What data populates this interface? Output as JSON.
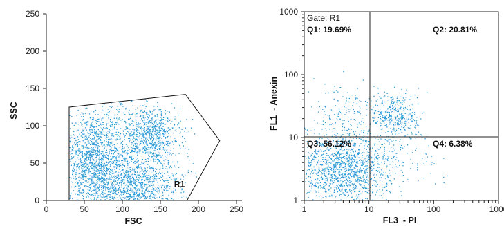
{
  "chart_data": [
    {
      "type": "scatter",
      "xlabel": "FSC",
      "ylabel": "SSC",
      "xlim": [
        0,
        250
      ],
      "ylim": [
        0,
        250
      ],
      "x_ticks": [
        "0",
        "50",
        "100",
        "150",
        "200",
        "250"
      ],
      "y_ticks": [
        "0",
        "50",
        "100",
        "150",
        "200",
        "250"
      ],
      "gate": {
        "name": "R1",
        "polygon": [
          [
            30,
            125
          ],
          [
            183,
            142
          ],
          [
            228,
            80
          ],
          [
            185,
            0
          ],
          [
            30,
            0
          ]
        ]
      },
      "clusters": [
        {
          "cx": 60,
          "cy": 60,
          "sx": 18,
          "sy": 30,
          "n": 900
        },
        {
          "cx": 90,
          "cy": 30,
          "sx": 30,
          "sy": 22,
          "n": 800
        },
        {
          "cx": 140,
          "cy": 85,
          "sx": 18,
          "sy": 20,
          "n": 700
        },
        {
          "cx": 130,
          "cy": 20,
          "sx": 30,
          "sy": 15,
          "n": 450
        },
        {
          "cx": 100,
          "cy": 90,
          "sx": 30,
          "sy": 25,
          "n": 350
        }
      ],
      "grid": false
    },
    {
      "type": "scatter",
      "scale": "log",
      "xlabel": "FL3  - PI",
      "ylabel": "FL1  - Anexin",
      "xlim": [
        1,
        1000
      ],
      "ylim": [
        1,
        1000
      ],
      "x_ticks": [
        "1",
        "10",
        "100",
        "1000"
      ],
      "y_ticks": [
        "1",
        "10",
        "100",
        "1000"
      ],
      "gate_label": "Gate: R1",
      "quadrant_divider": {
        "x": 10,
        "y": 10
      },
      "quadrants": [
        {
          "label": "Q1: 19.69%",
          "percent": 19.69
        },
        {
          "label": "Q2: 20.81%",
          "percent": 20.81
        },
        {
          "label": "Q3: 56.12%",
          "percent": 56.12
        },
        {
          "label": "Q4: 6.38%",
          "percent": 6.38
        }
      ],
      "clusters": [
        {
          "cx": 4,
          "cy": 3,
          "sx": 0.35,
          "sy": 0.3,
          "n": 1300
        },
        {
          "cx": 25,
          "cy": 22,
          "sx": 0.18,
          "sy": 0.2,
          "n": 380
        },
        {
          "cx": 3.5,
          "cy": 25,
          "sx": 0.3,
          "sy": 0.22,
          "n": 160
        },
        {
          "cx": 25,
          "cy": 5,
          "sx": 0.35,
          "sy": 0.25,
          "n": 120
        }
      ],
      "grid": false
    }
  ],
  "colors": {
    "dot": "#2a9ad6",
    "axis": "#222222"
  }
}
